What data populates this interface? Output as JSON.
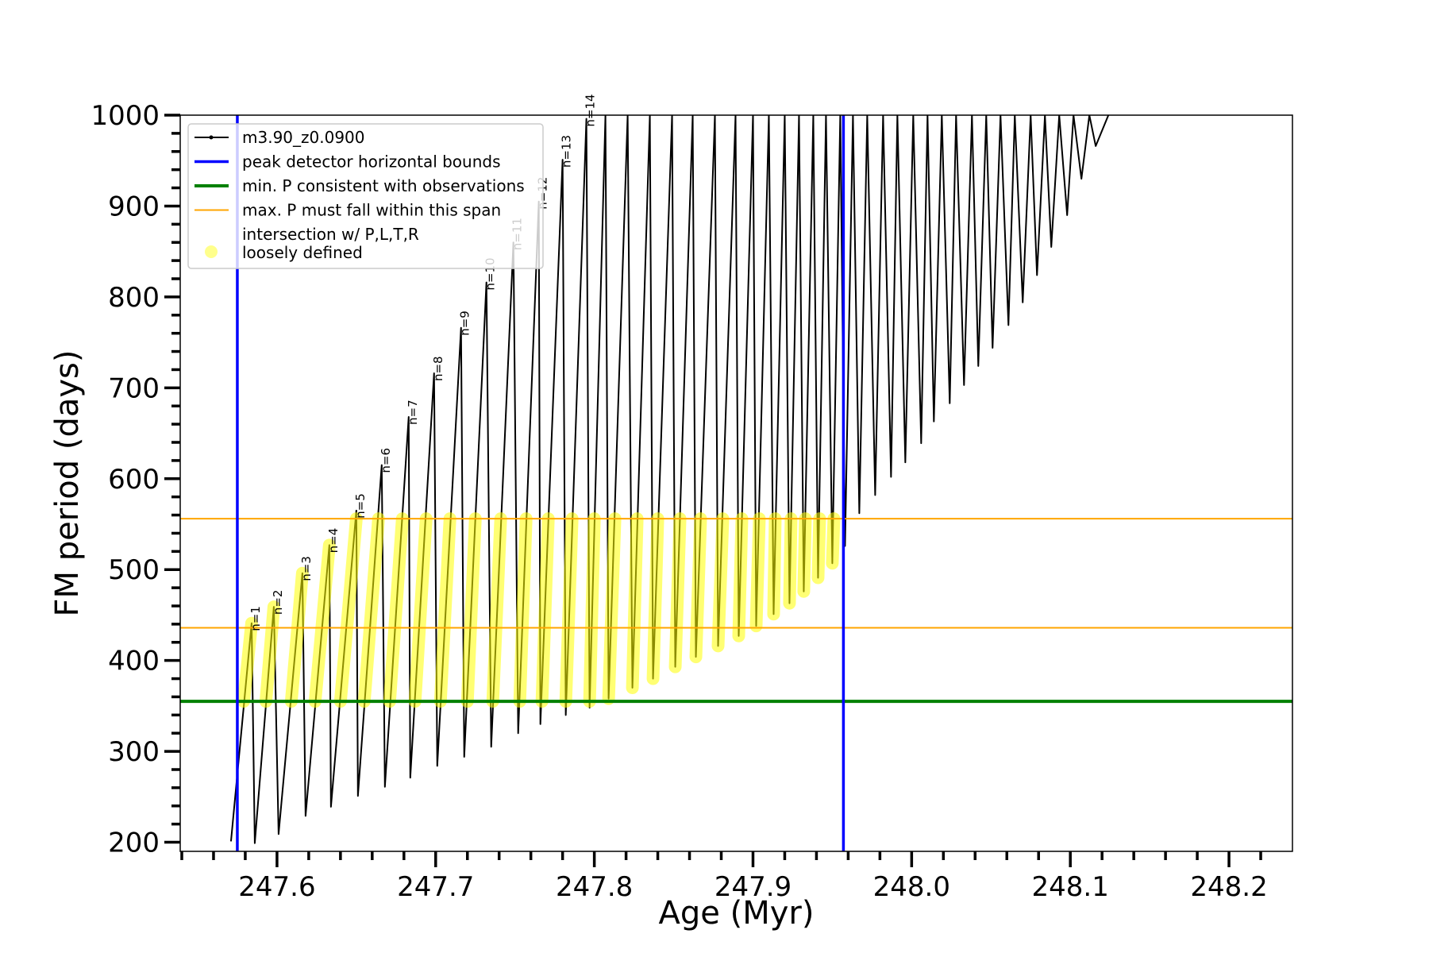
{
  "chart_data": {
    "type": "line",
    "xlabel": "Age (Myr)",
    "ylabel": "FM period (days)",
    "xlim": [
      247.539,
      248.24
    ],
    "ylim": [
      190,
      1000
    ],
    "xticks": [
      247.6,
      247.7,
      247.8,
      247.9,
      {
        "value": 248,
        "label": "248.0"
      },
      248.1,
      248.2
    ],
    "xminorticks": [
      247.54,
      247.56,
      247.58,
      247.62,
      247.64,
      247.66,
      247.68,
      247.72,
      247.74,
      247.76,
      247.78,
      247.82,
      247.84,
      247.86,
      247.88,
      247.92,
      247.94,
      247.96,
      247.98,
      248.02,
      248.04,
      248.06,
      248.08,
      248.12,
      248.14,
      248.16,
      248.18,
      248.22
    ],
    "yticks": [
      200,
      300,
      400,
      500,
      600,
      700,
      800,
      900,
      1000
    ],
    "yminorticks": [
      220,
      240,
      260,
      280,
      320,
      340,
      360,
      380,
      420,
      440,
      460,
      480,
      520,
      540,
      560,
      580,
      620,
      640,
      660,
      680,
      720,
      740,
      760,
      780,
      820,
      840,
      860,
      880,
      920,
      940,
      960,
      980
    ],
    "legend": "upper left",
    "series": [
      {
        "name": "m3.90_z0.0900",
        "color": "black",
        "x": [
          247.571,
          247.584,
          247.586,
          247.598,
          247.601,
          247.616,
          247.618,
          247.633,
          247.634,
          247.65,
          247.651,
          247.666,
          247.668,
          247.683,
          247.684,
          247.699,
          247.701,
          247.716,
          247.718,
          247.732,
          247.735,
          247.749,
          247.752,
          247.765,
          247.766,
          247.78,
          247.782,
          247.795,
          247.797,
          247.807,
          247.809,
          247.821,
          247.824,
          247.835,
          247.837,
          247.849,
          247.851,
          247.862,
          247.864,
          247.876,
          247.878,
          247.889,
          247.891,
          247.9,
          247.902,
          247.91,
          247.913,
          247.92,
          247.923,
          247.929,
          247.932,
          247.938,
          247.941,
          247.946,
          247.95,
          247.955,
          247.958,
          247.963,
          247.967,
          247.972,
          247.977,
          247.982,
          247.987,
          247.991,
          247.996,
          248.001,
          248.006,
          248.01,
          248.014,
          248.019,
          248.024,
          248.028,
          248.033,
          248.038,
          248.042,
          248.047,
          248.051,
          248.056,
          248.061,
          248.065,
          248.07,
          248.075,
          248.079,
          248.084,
          248.088,
          248.093,
          248.098,
          248.102,
          248.107,
          248.112,
          248.116,
          248.124
        ],
        "values": [
          201,
          441,
          199,
          459,
          209,
          496,
          229,
          527,
          239,
          565,
          251,
          615,
          261,
          668,
          271,
          716,
          284,
          766,
          294,
          816,
          305,
          860,
          320,
          905,
          330,
          951,
          340,
          996,
          348,
          1000,
          358,
          1000,
          370,
          1000,
          380,
          1000,
          393,
          1000,
          404,
          1000,
          416,
          1000,
          427,
          1000,
          438,
          1000,
          451,
          1000,
          463,
          1000,
          476,
          1000,
          491,
          1000,
          507,
          1000,
          526,
          1000,
          562,
          1000,
          582,
          1000,
          602,
          1000,
          618,
          1000,
          639,
          1000,
          663,
          1000,
          683,
          1000,
          703,
          1000,
          724,
          1000,
          744,
          1000,
          769,
          1000,
          794,
          1000,
          824,
          1000,
          855,
          1000,
          890,
          1000,
          930,
          1000,
          966,
          1000
        ]
      },
      {
        "name": "intersection w/ P,L,T,R\nloosely defined",
        "color": "yellow",
        "x": [
          247.579,
          247.584,
          null,
          247.593,
          247.598,
          null,
          247.609,
          247.616,
          null,
          247.624,
          247.633,
          null,
          247.64,
          247.65,
          null,
          247.655,
          247.664,
          null,
          247.671,
          247.679,
          null,
          247.687,
          247.694,
          null,
          247.703,
          247.709,
          null,
          247.72,
          247.725,
          null,
          247.736,
          247.741,
          null,
          247.753,
          247.757,
          null,
          247.767,
          247.771,
          null,
          247.782,
          247.786,
          null,
          247.797,
          247.8,
          null,
          247.809,
          247.813,
          null,
          247.824,
          247.827,
          null,
          247.837,
          247.84,
          null,
          247.851,
          247.854,
          null,
          247.864,
          247.867,
          null,
          247.878,
          247.881,
          null,
          247.891,
          247.893,
          null,
          247.902,
          247.904,
          null,
          247.913,
          247.914,
          null,
          247.923,
          247.924,
          null,
          247.932,
          247.933,
          null,
          247.941,
          247.942,
          null,
          247.95,
          247.951
        ],
        "values": [
          355,
          441,
          null,
          355,
          459,
          null,
          355,
          496,
          null,
          355,
          527,
          null,
          355,
          556,
          null,
          355,
          556,
          null,
          355,
          556,
          null,
          355,
          556,
          null,
          355,
          556,
          null,
          355,
          556,
          null,
          355,
          556,
          null,
          355,
          556,
          null,
          355,
          556,
          null,
          355,
          556,
          null,
          355,
          556,
          null,
          358,
          556,
          null,
          370,
          556,
          null,
          380,
          556,
          null,
          393,
          556,
          null,
          404,
          556,
          null,
          416,
          556,
          null,
          427,
          556,
          null,
          438,
          556,
          null,
          451,
          556,
          null,
          463,
          556,
          null,
          476,
          556,
          null,
          491,
          556,
          null,
          507,
          556
        ]
      }
    ],
    "vlines": [
      {
        "name": "peak detector horizontal bounds",
        "color": "blue",
        "values": [
          247.575,
          247.957
        ]
      }
    ],
    "hlines": [
      {
        "name": "min. P consistent with observations",
        "color": "green",
        "values": [
          355
        ]
      },
      {
        "name": "max. P must fall within this span",
        "color": "orange",
        "values": [
          436,
          556
        ]
      }
    ],
    "annotations": [
      "n=1",
      "n=2",
      "n=3",
      "n=4",
      "n=5",
      "n=6",
      "n=7",
      "n=8",
      "n=9",
      "n=10",
      "n=11",
      "n=12",
      "n=13",
      "n=14"
    ]
  }
}
